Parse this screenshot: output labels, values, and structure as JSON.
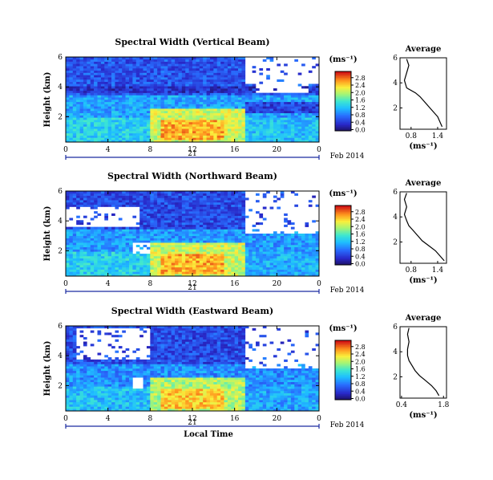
{
  "chart_data": [
    {
      "type": "heatmap",
      "title": "Spectral Width (Vertical Beam)",
      "ylabel": "Height (km)",
      "xlabel": "",
      "x_ticks": [
        "0",
        "4",
        "8",
        "12",
        "16",
        "20",
        "0"
      ],
      "y_ticks": [
        "2",
        "4",
        "6"
      ],
      "xlim": [
        0,
        24
      ],
      "ylim": [
        0.3,
        6.0
      ],
      "date_day": "21",
      "date_label": "Feb 2014",
      "colorbar": {
        "unit": "(ms⁻¹)",
        "ticks": [
          "0.0",
          "0.4",
          "0.8",
          "1.2",
          "1.6",
          "2.0",
          "2.4",
          "2.8"
        ]
      },
      "vmax": 2.8,
      "regions": [
        {
          "t": [
            0,
            24
          ],
          "h": [
            0.3,
            6.0
          ],
          "v": 0.75
        },
        {
          "t": [
            0,
            24
          ],
          "h": [
            3.5,
            6.0
          ],
          "v": 0.55
        },
        {
          "t": [
            0,
            24
          ],
          "h": [
            3.6,
            4.0
          ],
          "v": 0.35
        },
        {
          "t": [
            0,
            24
          ],
          "h": [
            2.0,
            3.5
          ],
          "v": 0.95
        },
        {
          "t": [
            0,
            8
          ],
          "h": [
            0.3,
            2.0
          ],
          "v": 1.2
        },
        {
          "t": [
            8,
            17
          ],
          "h": [
            0.3,
            2.5
          ],
          "v": 1.9
        },
        {
          "t": [
            9,
            15
          ],
          "h": [
            0.4,
            1.8
          ],
          "v": 2.3
        },
        {
          "t": [
            17,
            24
          ],
          "h": [
            0.3,
            2.0
          ],
          "v": 1.1
        },
        {
          "t": [
            17,
            24
          ],
          "h": [
            2.2,
            3.0
          ],
          "v": 0.45
        }
      ],
      "gaps": [
        {
          "t": [
            17,
            24
          ],
          "h": [
            4.2,
            6.0
          ]
        },
        {
          "t": [
            18,
            23
          ],
          "h": [
            3.6,
            4.2
          ]
        }
      ],
      "average": {
        "title": "Average",
        "xlabel": "(ms⁻¹)",
        "x_ticks": [
          "0.8",
          "1.4"
        ],
        "xlim": [
          0.55,
          1.6
        ],
        "ylim": [
          0.3,
          6.0
        ],
        "y_ticks": [
          "2",
          "4",
          "6"
        ],
        "profile_x": [
          1.5,
          1.45,
          1.4,
          1.3,
          1.2,
          1.1,
          1.0,
          0.9,
          0.7,
          0.65,
          0.7,
          0.75,
          0.7
        ],
        "profile_h": [
          0.5,
          0.9,
          1.3,
          1.7,
          2.1,
          2.5,
          2.9,
          3.2,
          3.6,
          4.2,
          4.8,
          5.4,
          5.9
        ]
      }
    },
    {
      "type": "heatmap",
      "title": "Spectral Width (Northward Beam)",
      "ylabel": "Height (km)",
      "xlabel": "",
      "x_ticks": [
        "0",
        "4",
        "8",
        "12",
        "16",
        "20",
        "0"
      ],
      "y_ticks": [
        "2",
        "4",
        "6"
      ],
      "xlim": [
        0,
        24
      ],
      "ylim": [
        0.3,
        6.0
      ],
      "date_day": "21",
      "date_label": "Feb 2014",
      "colorbar": {
        "unit": "(ms⁻¹)",
        "ticks": [
          "0.0",
          "0.4",
          "0.8",
          "1.2",
          "1.6",
          "2.0",
          "2.4",
          "2.8"
        ]
      },
      "vmax": 2.8,
      "regions": [
        {
          "t": [
            0,
            24
          ],
          "h": [
            0.3,
            6.0
          ],
          "v": 0.7
        },
        {
          "t": [
            0,
            24
          ],
          "h": [
            3.5,
            6.0
          ],
          "v": 0.5
        },
        {
          "t": [
            0,
            24
          ],
          "h": [
            2.0,
            3.5
          ],
          "v": 0.9
        },
        {
          "t": [
            0,
            8
          ],
          "h": [
            0.3,
            2.0
          ],
          "v": 1.2
        },
        {
          "t": [
            8,
            17
          ],
          "h": [
            0.3,
            2.5
          ],
          "v": 1.9
        },
        {
          "t": [
            9,
            15
          ],
          "h": [
            0.4,
            1.8
          ],
          "v": 2.3
        },
        {
          "t": [
            17,
            24
          ],
          "h": [
            0.3,
            2.0
          ],
          "v": 1.0
        }
      ],
      "gaps": [
        {
          "t": [
            0,
            7
          ],
          "h": [
            3.6,
            5.0
          ]
        },
        {
          "t": [
            17,
            24
          ],
          "h": [
            3.2,
            6.0
          ]
        },
        {
          "t": [
            6.5,
            8
          ],
          "h": [
            1.8,
            2.6
          ]
        }
      ],
      "average": {
        "title": "Average",
        "xlabel": "(ms⁻¹)",
        "x_ticks": [
          "0.8",
          "1.4"
        ],
        "xlim": [
          0.55,
          1.6
        ],
        "ylim": [
          0.3,
          6.0
        ],
        "y_ticks": [
          "2",
          "4",
          "6"
        ],
        "profile_x": [
          1.55,
          1.45,
          1.35,
          1.2,
          1.05,
          0.95,
          0.85,
          0.75,
          0.7,
          0.65,
          0.7,
          0.65,
          0.7
        ],
        "profile_h": [
          0.5,
          0.9,
          1.3,
          1.7,
          2.1,
          2.5,
          2.9,
          3.3,
          3.7,
          4.2,
          4.8,
          5.4,
          5.9
        ]
      }
    },
    {
      "type": "heatmap",
      "title": "Spectral Width (Eastward Beam)",
      "ylabel": "Height (km)",
      "xlabel": "Local Time",
      "x_ticks": [
        "0",
        "4",
        "8",
        "12",
        "16",
        "20",
        "0"
      ],
      "y_ticks": [
        "2",
        "4",
        "6"
      ],
      "xlim": [
        0,
        24
      ],
      "ylim": [
        0.3,
        6.0
      ],
      "date_day": "21",
      "date_label": "Feb 2014",
      "colorbar": {
        "unit": "(ms⁻¹)",
        "ticks": [
          "0.0",
          "0.4",
          "0.8",
          "1.2",
          "1.6",
          "2.0",
          "2.4",
          "2.8"
        ]
      },
      "vmax": 2.8,
      "regions": [
        {
          "t": [
            0,
            24
          ],
          "h": [
            0.3,
            6.0
          ],
          "v": 0.7
        },
        {
          "t": [
            0,
            24
          ],
          "h": [
            3.5,
            6.0
          ],
          "v": 0.5
        },
        {
          "t": [
            0,
            24
          ],
          "h": [
            2.0,
            3.5
          ],
          "v": 0.85
        },
        {
          "t": [
            0,
            8
          ],
          "h": [
            0.3,
            2.0
          ],
          "v": 1.1
        },
        {
          "t": [
            8,
            17
          ],
          "h": [
            0.3,
            2.5
          ],
          "v": 1.8
        },
        {
          "t": [
            9,
            15
          ],
          "h": [
            0.4,
            1.8
          ],
          "v": 2.2
        },
        {
          "t": [
            17,
            24
          ],
          "h": [
            0.3,
            2.0
          ],
          "v": 0.95
        }
      ],
      "gaps": [
        {
          "t": [
            1,
            8
          ],
          "h": [
            3.7,
            5.8
          ]
        },
        {
          "t": [
            17,
            24
          ],
          "h": [
            3.2,
            6.0
          ]
        },
        {
          "t": [
            6.5,
            7.5
          ],
          "h": [
            1.8,
            2.6
          ]
        }
      ],
      "average": {
        "title": "Average",
        "xlabel": "(ms⁻¹)",
        "x_ticks": [
          "0.4",
          "1.8"
        ],
        "xlim": [
          0.35,
          1.9
        ],
        "ylim": [
          0.3,
          6.0
        ],
        "y_ticks": [
          "2",
          "4",
          "6"
        ],
        "profile_x": [
          1.65,
          1.55,
          1.4,
          1.2,
          1.0,
          0.85,
          0.75,
          0.65,
          0.6,
          0.6,
          0.65,
          0.6,
          0.65
        ],
        "profile_h": [
          0.5,
          0.9,
          1.3,
          1.7,
          2.1,
          2.5,
          2.9,
          3.3,
          3.7,
          4.2,
          4.8,
          5.4,
          5.9
        ]
      }
    }
  ]
}
